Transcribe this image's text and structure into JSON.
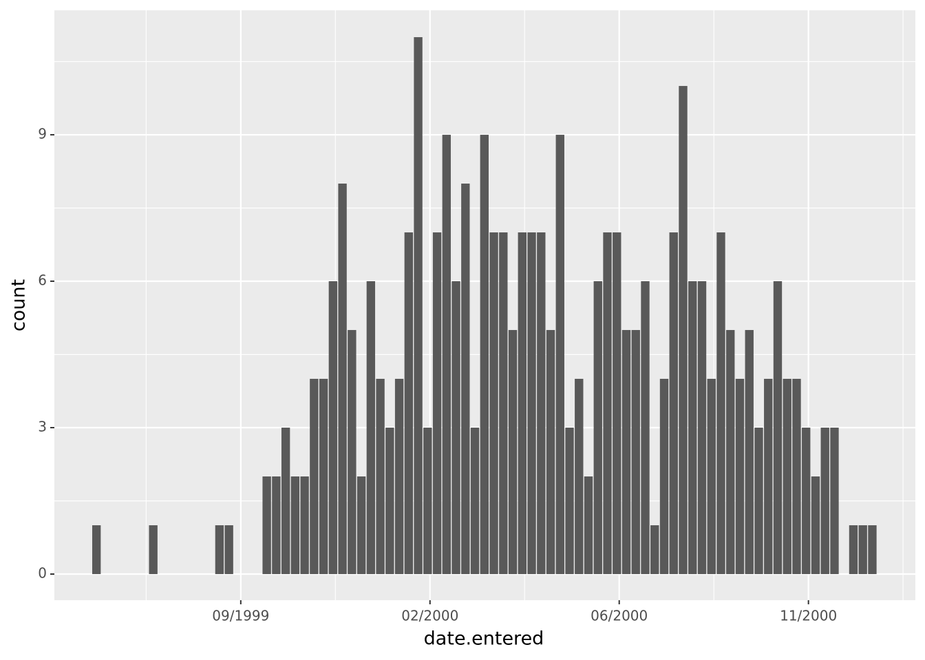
{
  "chart_data": {
    "type": "bar",
    "x_label": "date.entered",
    "y_label": "count",
    "x": [
      -15.25,
      -9.25,
      -2.25,
      -1.25,
      2.75,
      3.75,
      4.75,
      5.75,
      6.75,
      7.75,
      8.75,
      9.75,
      10.75,
      11.75,
      12.75,
      13.75,
      14.75,
      15.75,
      16.75,
      17.75,
      18.75,
      19.75,
      20.75,
      21.75,
      22.75,
      23.75,
      24.75,
      25.75,
      26.75,
      27.75,
      28.75,
      29.75,
      30.75,
      31.75,
      32.75,
      33.75,
      34.75,
      35.75,
      36.75,
      37.75,
      38.75,
      39.75,
      40.75,
      41.75,
      42.75,
      43.75,
      44.75,
      45.75,
      46.75,
      47.75,
      48.75,
      49.75,
      50.75,
      51.75,
      52.75,
      53.75,
      54.75,
      55.75,
      56.75,
      57.75,
      58.75,
      59.75,
      60.75,
      61.75,
      62.75,
      64.75,
      65.75,
      66.75
    ],
    "values": [
      1,
      1,
      1,
      1,
      2,
      2,
      3,
      2,
      2,
      4,
      4,
      6,
      8,
      5,
      2,
      6,
      4,
      3,
      4,
      7,
      11,
      3,
      7,
      9,
      6,
      8,
      3,
      9,
      7,
      7,
      5,
      7,
      7,
      7,
      5,
      9,
      3,
      4,
      2,
      6,
      7,
      7,
      5,
      5,
      6,
      1,
      4,
      7,
      10,
      6,
      6,
      4,
      7,
      5,
      4,
      5,
      3,
      4,
      6,
      4,
      4,
      3,
      2,
      3,
      3,
      1,
      1,
      1
    ],
    "color": "#595959",
    "xlim": [
      -19.7,
      71.3
    ],
    "xticks": [
      {
        "value": 0,
        "label": "09/1999"
      },
      {
        "value": 20,
        "label": "02/2000"
      },
      {
        "value": 40,
        "label": "06/2000"
      },
      {
        "value": 60,
        "label": "11/2000"
      }
    ],
    "x_minor_ticks": [
      -10,
      10,
      30,
      50,
      70
    ],
    "ylim": [
      -0.535,
      11.55
    ],
    "yticks": [
      0,
      3,
      6,
      9
    ],
    "y_minor_ticks": [
      1.5,
      4.5,
      7.5,
      10.5
    ],
    "grid": true
  }
}
